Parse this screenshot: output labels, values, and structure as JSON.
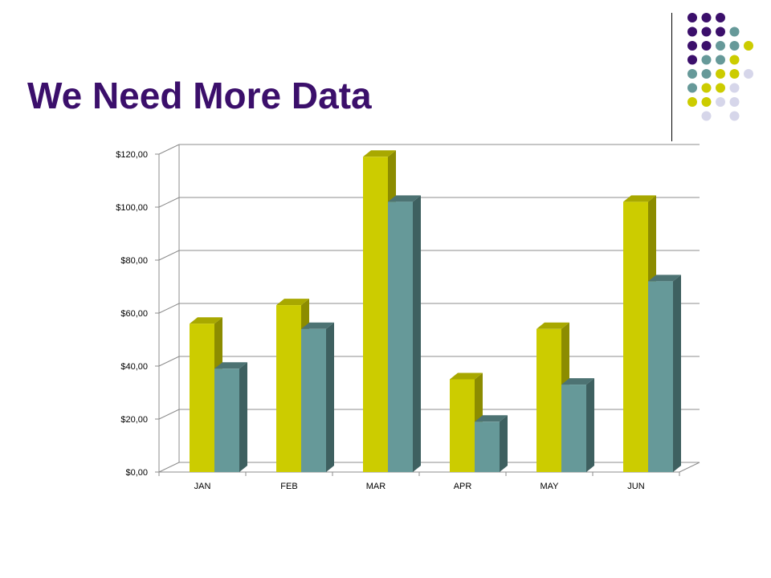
{
  "slide": {
    "title": "We Need More Data"
  },
  "decoration": {
    "dot_colors": {
      "purple": "#3b0f6b",
      "teal": "#669999",
      "lime": "#cccc00",
      "lavender": "#d6d6ea"
    },
    "dot_rows": [
      [
        "purple",
        "purple",
        "purple"
      ],
      [
        "purple",
        "purple",
        "purple",
        "teal"
      ],
      [
        "purple",
        "purple",
        "teal",
        "teal",
        "lime"
      ],
      [
        "purple",
        "teal",
        "teal",
        "lime"
      ],
      [
        "teal",
        "teal",
        "lime",
        "lime",
        "lavender"
      ],
      [
        "teal",
        "lime",
        "lime",
        "lavender"
      ],
      [
        "lime",
        "lime",
        "lavender",
        "lavender"
      ],
      [
        "lavender",
        "lavender"
      ]
    ]
  },
  "chart_data": {
    "type": "bar",
    "title": "",
    "xlabel": "",
    "ylabel": "",
    "categories": [
      "JAN",
      "FEB",
      "MAR",
      "APR",
      "MAY",
      "JUN"
    ],
    "series": [
      {
        "color": "#cccc00",
        "side_color": "#8c8c00",
        "top_color": "#a8a800",
        "values": [
          56,
          63,
          119,
          35,
          54,
          102
        ]
      },
      {
        "color": "#669999",
        "side_color": "#3e6060",
        "top_color": "#4d7373",
        "values": [
          39,
          54,
          102,
          19,
          33,
          72
        ]
      }
    ],
    "ylim": [
      0,
      120
    ],
    "yticks": [
      0,
      20,
      40,
      60,
      80,
      100,
      120
    ],
    "ytick_labels": [
      "$0,00",
      "$20,00",
      "$40,00",
      "$60,00",
      "$80,00",
      "$100,00",
      "$120,00"
    ],
    "grid": true,
    "legend": "none",
    "style": "3d-clustered-column"
  }
}
